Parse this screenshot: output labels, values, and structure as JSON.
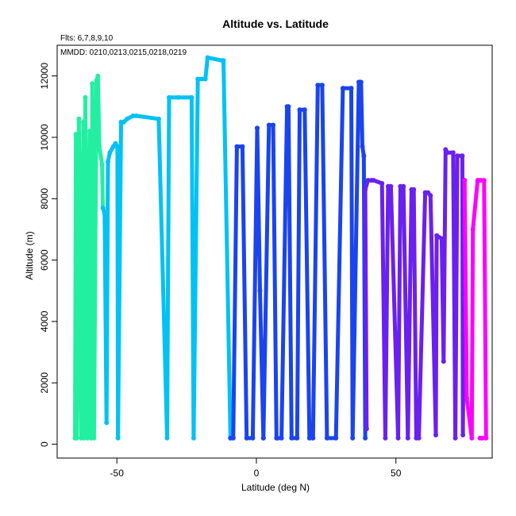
{
  "chart_data": {
    "type": "line",
    "title": "Altitude vs. Latitude",
    "xlabel": "Latitude (deg N)",
    "ylabel": "Altitude (m)",
    "xlim": [
      -71.4,
      84.5
    ],
    "ylim": [
      -450,
      13000
    ],
    "x_ticks": [
      -50,
      0,
      50
    ],
    "y_ticks": [
      0,
      2000,
      4000,
      6000,
      8000,
      10000,
      12000
    ],
    "annotations": {
      "flights": "Flts: 6,7,8,9,10",
      "dates": "MMDD: 0210,0213,0215,0218,0219"
    },
    "grid": false,
    "legend": "none",
    "series": [
      {
        "color": "#22F0A0",
        "x": [
          -65,
          -64.7,
          -64.4,
          -63.6,
          -62.8,
          -62.0,
          -61.8,
          -61.3,
          -60.5,
          -59.7,
          -59.2,
          -58.8,
          -58.2,
          -57.3,
          -56.8,
          -56.3,
          -55.3,
          -55.0
        ],
        "y": [
          200,
          10100,
          200,
          10600,
          200,
          10500,
          200,
          11300,
          200,
          10200,
          200,
          11750,
          200,
          11850,
          12000,
          9700,
          9100,
          7700
        ]
      },
      {
        "color": "#00C2F4",
        "x": [
          -55.0,
          -54.4,
          -53.7,
          -53.2,
          -52.5,
          -51.3,
          -50.5,
          -49.8,
          -49.6,
          -48.5,
          -47.5,
          -46.3,
          -44.2,
          -43.0,
          -35.0,
          -32.0,
          -31.3,
          -28.0,
          -23.2,
          -22.5,
          -21.0,
          -19.5,
          -18.3,
          -17.5,
          -12.3,
          -11.8,
          -9.3
        ],
        "y": [
          7700,
          7500,
          700,
          9200,
          9500,
          9700,
          9800,
          9700,
          200,
          10500,
          10500,
          10600,
          10700,
          10700,
          10600,
          200,
          11300,
          11300,
          11300,
          200,
          11900,
          11900,
          11900,
          12600,
          12500,
          12500,
          200
        ]
      },
      {
        "color": "#1A44F0",
        "x": [
          -9.3,
          -8.3,
          -7.0,
          -5.0,
          -3.5,
          -1.3,
          0.3,
          0.3,
          1.3,
          2.5,
          2.5,
          4.5,
          6.0,
          7.2,
          7.5,
          9.0,
          11.0,
          11.5,
          12.6,
          14.6,
          15.5,
          17.3,
          19.0,
          20.3,
          22.0,
          23.6,
          25.3,
          28.5,
          31.0,
          34.0,
          34.5,
          36.7,
          37.5,
          38.0,
          38.5,
          39.0
        ],
        "y": [
          200,
          200,
          9700,
          9700,
          200,
          200,
          10300,
          10300,
          5000,
          200,
          200,
          10400,
          10400,
          200,
          200,
          200,
          11000,
          11000,
          200,
          200,
          10900,
          10900,
          200,
          200,
          11700,
          11700,
          200,
          200,
          11600,
          11600,
          200,
          11800,
          11800,
          9700,
          9400,
          200
        ]
      },
      {
        "color": "#6A20F0",
        "x": [
          39.5,
          39.0,
          40.0,
          41.2,
          42.0,
          45.0,
          46.2,
          47.2,
          48.2,
          50.8,
          51.6,
          52.7,
          54.3,
          55.6,
          56.4,
          57.3,
          58.2,
          60.5,
          61.5,
          62.4,
          64.3,
          64.6,
          66.4,
          67.1,
          67.8,
          68.4,
          70.5,
          71.3,
          72.0,
          73.8,
          74.0,
          74.6
        ],
        "y": [
          500,
          8300,
          8600,
          8600,
          8600,
          8500,
          200,
          8400,
          8400,
          200,
          8400,
          8400,
          200,
          8300,
          8300,
          200,
          200,
          8200,
          8200,
          8100,
          300,
          6800,
          6700,
          2700,
          9600,
          9500,
          9500,
          200,
          9400,
          9400,
          300,
          8600
        ]
      },
      {
        "color": "#FF00FF",
        "x": [
          74.6,
          75.4,
          77.2,
          77.6,
          79.3,
          80.0,
          80.5,
          81.6,
          82.3,
          80.8,
          80.1
        ],
        "y": [
          8600,
          1500,
          200,
          7000,
          8600,
          8600,
          8600,
          8600,
          200,
          200,
          200
        ]
      }
    ]
  }
}
